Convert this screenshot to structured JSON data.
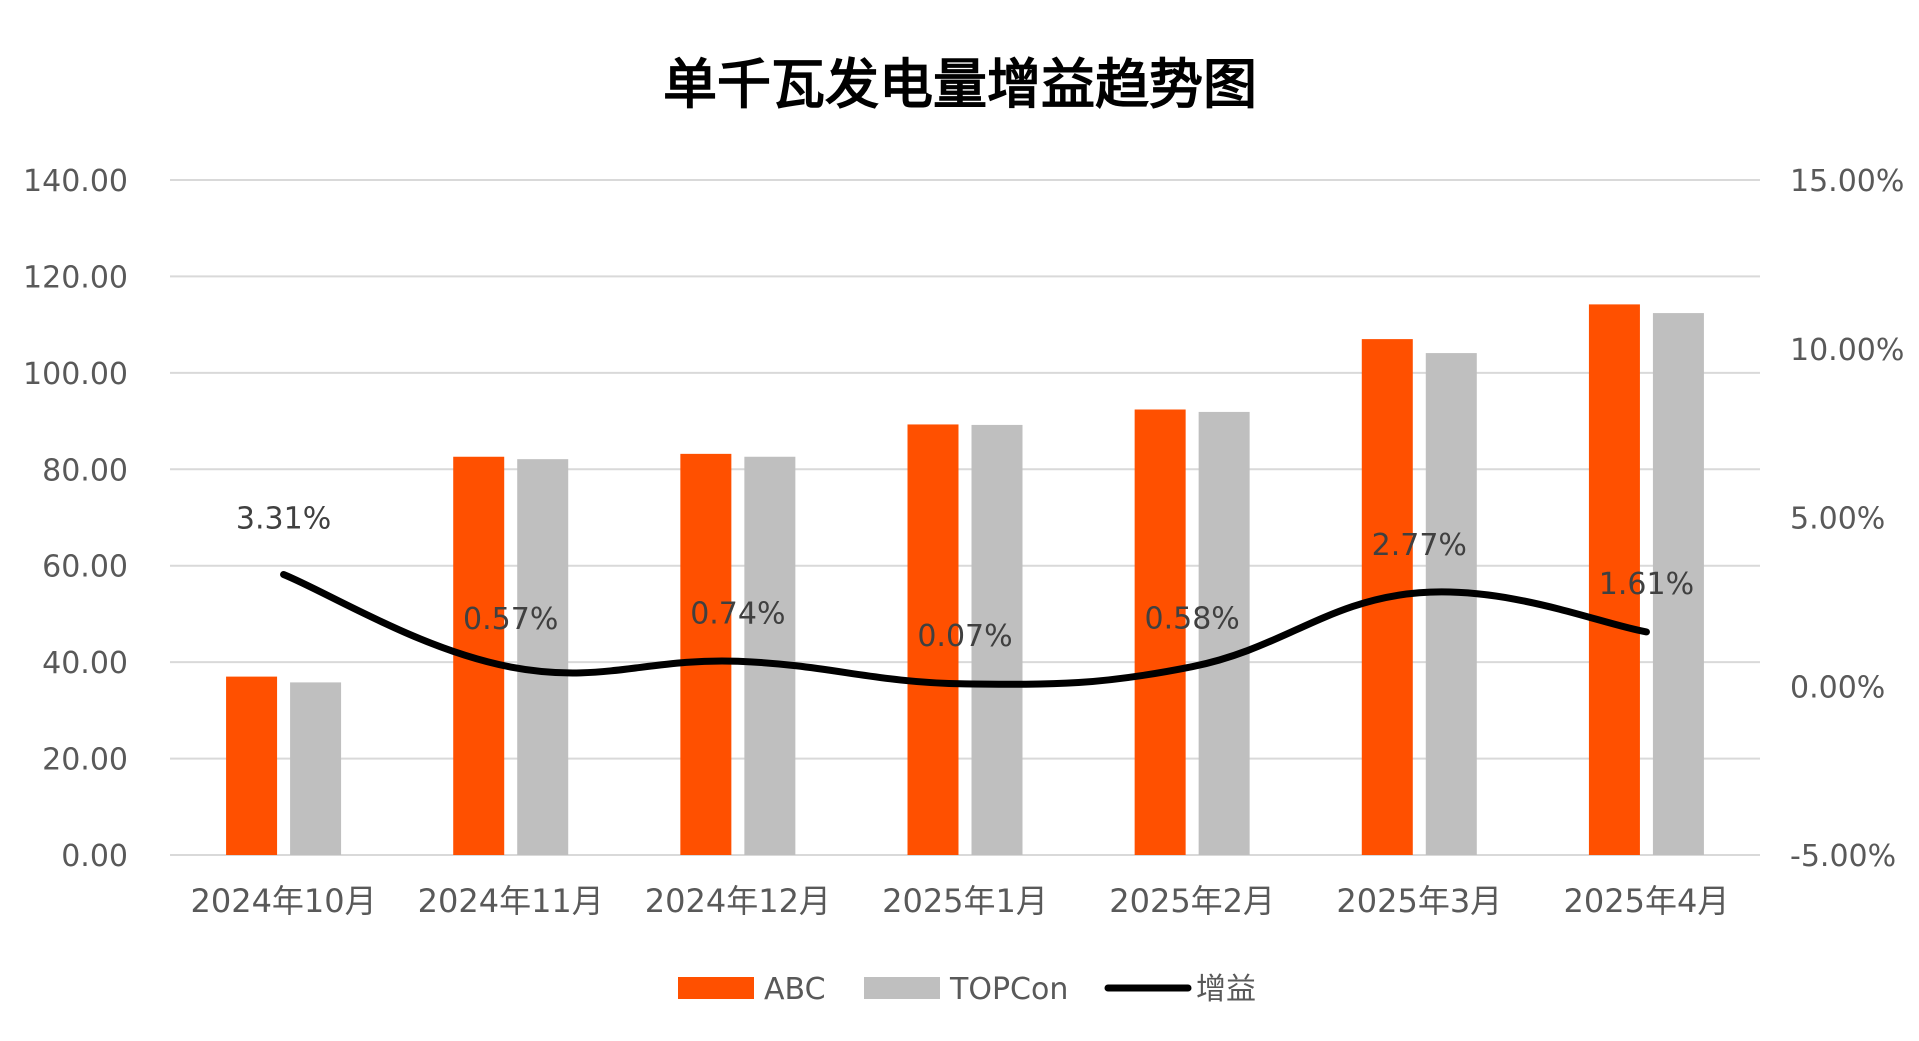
{
  "chart_data": {
    "type": "bar",
    "title": "单千瓦发电量增益趋势图",
    "categories": [
      "2024年10月",
      "2024年11月",
      "2024年12月",
      "2025年1月",
      "2025年2月",
      "2025年3月",
      "2025年4月"
    ],
    "series": [
      {
        "name": "ABC",
        "type": "bar",
        "axis": "left",
        "color": "#FF5000",
        "values": [
          37.0,
          82.6,
          83.2,
          89.3,
          92.4,
          107.0,
          114.2
        ]
      },
      {
        "name": "TOPCon",
        "type": "bar",
        "axis": "left",
        "color": "#BFBFBF",
        "values": [
          35.8,
          82.1,
          82.6,
          89.2,
          91.9,
          104.1,
          112.4
        ]
      },
      {
        "name": "增益",
        "type": "line",
        "axis": "right",
        "smooth": true,
        "color": "#000000",
        "values": [
          3.31,
          0.57,
          0.74,
          0.07,
          0.58,
          2.77,
          1.61
        ]
      }
    ],
    "data_labels": [
      "3.31%",
      "0.57%",
      "0.74%",
      "0.07%",
      "0.58%",
      "2.77%",
      "1.61%"
    ],
    "y_left": {
      "min": 0,
      "max": 140,
      "step": 20,
      "tick_labels": [
        "0.00",
        "20.00",
        "40.00",
        "60.00",
        "80.00",
        "100.00",
        "120.00",
        "140.00"
      ]
    },
    "y_right": {
      "min": -5,
      "max": 15,
      "step": 5,
      "tick_labels": [
        "-5.00%",
        "0.00%",
        "5.00%",
        "10.00%",
        "15.00%"
      ]
    },
    "grid": true,
    "legend_position": "bottom",
    "gridline_color": "#D9D9D9"
  }
}
